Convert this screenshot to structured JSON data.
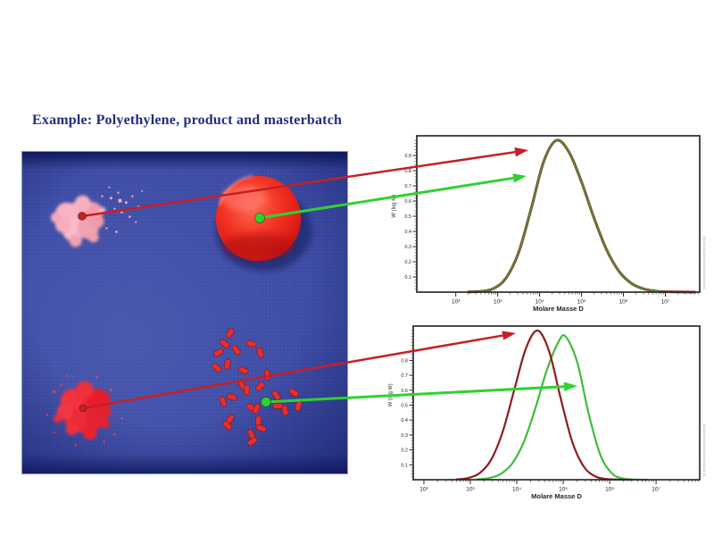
{
  "title": "Example: Polyethylene, product and masterbatch",
  "colors": {
    "title_text": "#202e7e",
    "photo_background": "#3e4ca3",
    "arrow_red": "#c42026",
    "arrow_green": "#2fd22f",
    "curve_red": "#8e2020",
    "curve_green": "#3cbe3c",
    "axis": "#2a2a2a"
  },
  "photo": {
    "items": [
      "pink-powder-sample",
      "red-cap-product",
      "red-powder-sample",
      "masterbatch-pellets"
    ]
  },
  "chart_data": [
    {
      "type": "line",
      "title": "",
      "xlabel": "Molare Masse D",
      "ylabel": "W (log M)",
      "x_scale": "log",
      "xlim_log": [
        1.07,
        7.82
      ],
      "ylim": [
        0,
        1.03
      ],
      "grid": false,
      "legend": "none",
      "x_ticks": [
        {
          "label": "10²",
          "log": 2
        },
        {
          "label": "10³",
          "log": 3
        },
        {
          "label": "10⁴",
          "log": 4
        },
        {
          "label": "10⁵",
          "log": 5
        },
        {
          "label": "10⁶",
          "log": 6
        },
        {
          "label": "10⁷",
          "log": 7
        }
      ],
      "y_tick_labels": [
        "0.1",
        "0.2",
        "0.3",
        "0.4",
        "0.5",
        "0.6",
        "0.7",
        "0.8",
        "0.9"
      ],
      "y_tick_values": [
        0.1,
        0.2,
        0.3,
        0.4,
        0.5,
        0.6,
        0.7,
        0.8,
        0.9
      ],
      "series": [
        {
          "name": "product-red",
          "color": "#a02020",
          "x_log": [
            2.3,
            2.6,
            2.9,
            3.2,
            3.5,
            3.8,
            4.1,
            4.4,
            4.7,
            5.0,
            5.3,
            5.6,
            5.9,
            6.2,
            6.5,
            6.8,
            7.1,
            7.4,
            7.7
          ],
          "w": [
            0.001,
            0.005,
            0.024,
            0.093,
            0.262,
            0.551,
            0.862,
            1.0,
            0.923,
            0.726,
            0.487,
            0.278,
            0.135,
            0.056,
            0.02,
            0.006,
            0.002,
            0.001,
            0.0
          ]
        },
        {
          "name": "masterbatch-green",
          "color": "#3aa33a",
          "x_log": [
            2.3,
            2.6,
            2.9,
            3.2,
            3.5,
            3.8,
            4.1,
            4.4,
            4.7,
            5.0,
            5.3,
            5.6,
            5.9,
            6.2,
            6.5,
            6.8,
            7.1,
            7.4,
            7.7
          ],
          "w": [
            0.001,
            0.005,
            0.024,
            0.093,
            0.262,
            0.551,
            0.862,
            1.0,
            0.923,
            0.726,
            0.487,
            0.278,
            0.135,
            0.056,
            0.02,
            0.006,
            0.002,
            0.001,
            0.0
          ]
        }
      ]
    },
    {
      "type": "line",
      "title": "",
      "xlabel": "Molare Masse D",
      "ylabel": "W (log M)",
      "x_scale": "log",
      "xlim_log": [
        1.77,
        7.94
      ],
      "ylim": [
        0,
        1.03
      ],
      "grid": false,
      "legend": "none",
      "x_ticks": [
        {
          "label": "10²",
          "log": 2
        },
        {
          "label": "10³",
          "log": 3
        },
        {
          "label": "10⁴",
          "log": 4
        },
        {
          "label": "10⁵",
          "log": 5
        },
        {
          "label": "10⁶",
          "log": 6
        },
        {
          "label": "10⁷",
          "log": 7
        }
      ],
      "y_tick_labels": [
        "0.1",
        "0.2",
        "0.3",
        "0.4",
        "0.5",
        "0.6",
        "0.7",
        "0.8"
      ],
      "y_tick_values": [
        0.1,
        0.2,
        0.3,
        0.4,
        0.5,
        0.6,
        0.7,
        0.8
      ],
      "series": [
        {
          "name": "masterbatch-green",
          "color": "#3cbe3c",
          "x_log": [
            3.15,
            3.4,
            3.65,
            3.9,
            4.15,
            4.4,
            4.65,
            4.9,
            5.05,
            5.3,
            5.55,
            5.8,
            6.05,
            6.3,
            6.55,
            6.8
          ],
          "w": [
            0.003,
            0.011,
            0.038,
            0.108,
            0.252,
            0.478,
            0.737,
            0.925,
            0.96,
            0.79,
            0.44,
            0.166,
            0.042,
            0.007,
            0.001,
            0.0
          ]
        },
        {
          "name": "product-red",
          "color": "#8e1d1d",
          "x_log": [
            2.7,
            2.95,
            3.2,
            3.45,
            3.7,
            3.95,
            4.2,
            4.45,
            4.7,
            4.95,
            5.2,
            5.45,
            5.7,
            5.95,
            6.2,
            6.45
          ],
          "w": [
            0.002,
            0.011,
            0.044,
            0.135,
            0.325,
            0.607,
            0.883,
            1.0,
            0.857,
            0.54,
            0.249,
            0.085,
            0.021,
            0.004,
            0.001,
            0.0
          ]
        }
      ]
    }
  ]
}
